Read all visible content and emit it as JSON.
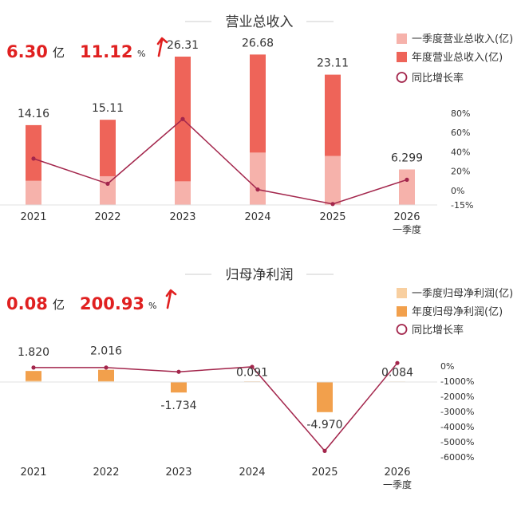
{
  "charts": [
    {
      "title": "营业总收入",
      "headline": {
        "value": "6.30",
        "unit": "亿",
        "growth": "11.12",
        "growth_unit": "%"
      },
      "legend": [
        "一季度营业总收入(亿)",
        "年度营业总收入(亿)",
        "同比增长率"
      ],
      "colors": {
        "quarter": "#f6b2ab",
        "annual": "#ee6459",
        "line": "#a3264c"
      },
      "categories": [
        "2021",
        "2022",
        "2023",
        "2024",
        "2025",
        "2026"
      ],
      "category_sub": [
        "",
        "",
        "",
        "",
        "",
        "一季度"
      ],
      "value_labels": [
        "14.16",
        "15.11",
        "26.31",
        "26.68",
        "23.11",
        "6.299"
      ],
      "right_ticks": [
        "80%",
        "60%",
        "40%",
        "20%",
        "0%",
        "-15%"
      ]
    },
    {
      "title": "归母净利润",
      "headline": {
        "value": "0.08",
        "unit": "亿",
        "growth": "200.93",
        "growth_unit": "%"
      },
      "legend": [
        "一季度归母净利润(亿)",
        "年度归母净利润(亿)",
        "同比增长率"
      ],
      "colors": {
        "quarter": "#f8cfa0",
        "annual": "#f2a04c",
        "line": "#a3264c"
      },
      "categories": [
        "2021",
        "2022",
        "2023",
        "2024",
        "2025",
        "2026"
      ],
      "category_sub": [
        "",
        "",
        "",
        "",
        "",
        "一季度"
      ],
      "value_labels": [
        "1.820",
        "2.016",
        "-1.734",
        "0.091",
        "-4.970",
        "0.084"
      ],
      "right_ticks": [
        "0%",
        "-1000%",
        "-2000%",
        "-3000%",
        "-4000%",
        "-5000%",
        "-6000%"
      ]
    }
  ],
  "chart_data": [
    {
      "type": "bar",
      "title": "营业总收入",
      "categories": [
        "2021",
        "2022",
        "2023",
        "2024",
        "2025",
        "2026 一季度"
      ],
      "series": [
        {
          "name": "一季度营业总收入(亿)",
          "type": "bar",
          "values": [
            4.3,
            5.1,
            4.2,
            9.3,
            8.7,
            6.299
          ]
        },
        {
          "name": "年度营业总收入(亿)",
          "type": "bar",
          "values": [
            14.16,
            15.11,
            26.31,
            26.68,
            23.11,
            null
          ]
        },
        {
          "name": "同比增长率",
          "type": "line",
          "axis": "right",
          "values": [
            33,
            7,
            74,
            1,
            -14,
            11.12
          ]
        }
      ],
      "ylim": [
        0,
        30
      ],
      "y2lim": [
        -15,
        80
      ],
      "y2ticks": [
        80,
        60,
        40,
        20,
        0,
        -15
      ]
    },
    {
      "type": "bar",
      "title": "归母净利润",
      "categories": [
        "2021",
        "2022",
        "2023",
        "2024",
        "2025",
        "2026 一季度"
      ],
      "series": [
        {
          "name": "一季度归母净利润(亿)",
          "type": "bar",
          "values": [
            0.2,
            0.15,
            0.0,
            0.03,
            0.0,
            0.084
          ]
        },
        {
          "name": "年度归母净利润(亿)",
          "type": "bar",
          "values": [
            1.82,
            2.016,
            -1.734,
            0.091,
            -4.97,
            null
          ]
        },
        {
          "name": "同比增长率",
          "type": "line",
          "axis": "right",
          "values": [
            -100,
            -100,
            -380,
            -50,
            -5600,
            200.93
          ]
        }
      ],
      "ylim": [
        -6.5,
        2.5
      ],
      "y2lim": [
        -6000,
        0
      ],
      "y2ticks": [
        0,
        -1000,
        -2000,
        -3000,
        -4000,
        -5000,
        -6000
      ]
    }
  ]
}
